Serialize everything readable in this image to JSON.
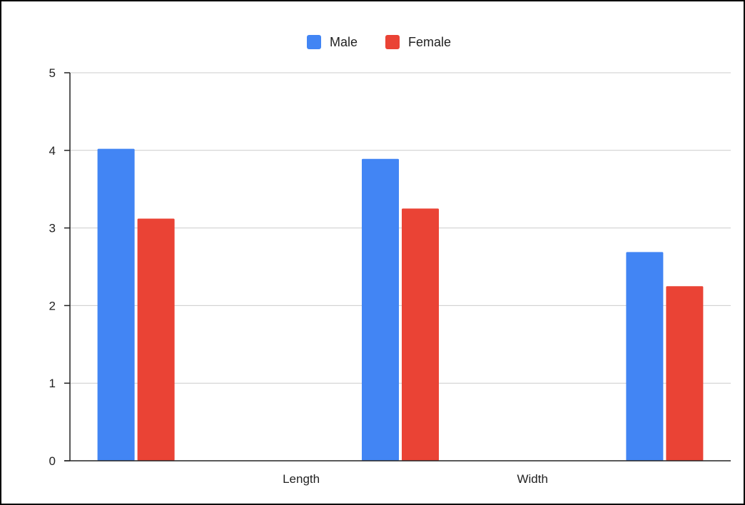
{
  "chart_data": {
    "type": "bar",
    "title": "",
    "xlabel": "",
    "ylabel": "",
    "categories": [
      "",
      "Length",
      "",
      "Width",
      ""
    ],
    "x_tick_labels": [
      "Length",
      "Width"
    ],
    "series": [
      {
        "name": "Male",
        "color": "#4285f4",
        "values": [
          4.02,
          null,
          3.89,
          null,
          2.69
        ]
      },
      {
        "name": "Female",
        "color": "#ea4335",
        "values": [
          3.12,
          null,
          3.25,
          null,
          2.25
        ]
      }
    ],
    "ylim": [
      0,
      5
    ],
    "yticks": [
      "0",
      "1",
      "2",
      "3",
      "4",
      "5"
    ],
    "grid": true,
    "legend_position": "top-center"
  }
}
